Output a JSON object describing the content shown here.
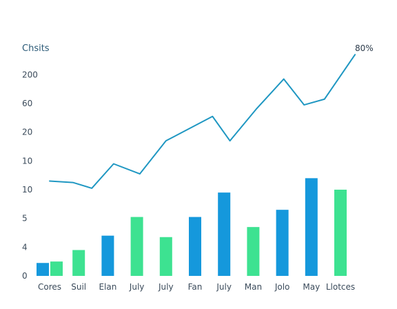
{
  "chart_data": {
    "type": "bar",
    "title": "Chsits",
    "annotation": "80%",
    "ytick_labels": [
      "0",
      "4",
      "5",
      "10",
      "10",
      "20",
      "60",
      "200"
    ],
    "categories": [
      "Cores",
      "Suil",
      "Elan",
      "July",
      "July",
      "Fan",
      "July",
      "Man",
      "Jolo",
      "May",
      "Llotces"
    ],
    "series": [
      {
        "type": "bar",
        "bars": [
          {
            "category": "Cores",
            "value": 0.45,
            "color": "#1598dc",
            "offset": -1
          },
          {
            "category": "Cores",
            "value": 0.5,
            "color": "#3de291",
            "offset": 1
          },
          {
            "category": "Suil",
            "value": 0.9,
            "color": "#3de291",
            "offset": 0
          },
          {
            "category": "Elan",
            "value": 1.4,
            "color": "#1598dc",
            "offset": 0
          },
          {
            "category": "July",
            "value": 2.05,
            "color": "#3de291",
            "offset": 0
          },
          {
            "category": "July",
            "value": 1.35,
            "color": "#3de291",
            "offset": 0
          },
          {
            "category": "Fan",
            "value": 2.05,
            "color": "#1598dc",
            "offset": 0
          },
          {
            "category": "July",
            "value": 2.9,
            "color": "#1598dc",
            "offset": 0
          },
          {
            "category": "Man",
            "value": 1.7,
            "color": "#3de291",
            "offset": 0
          },
          {
            "category": "Jolo",
            "value": 2.3,
            "color": "#1598dc",
            "offset": 0
          },
          {
            "category": "May",
            "value": 3.4,
            "color": "#1598dc",
            "offset": 0
          },
          {
            "category": "Llotces",
            "value": 3.0,
            "color": "#3de291",
            "offset": 0
          }
        ]
      },
      {
        "type": "line",
        "color": "#1f97c2",
        "points": [
          {
            "x": 0,
            "y": 3.3
          },
          {
            "x": 0.8,
            "y": 3.25
          },
          {
            "x": 1.45,
            "y": 3.05
          },
          {
            "x": 2.2,
            "y": 3.9
          },
          {
            "x": 3.1,
            "y": 3.55
          },
          {
            "x": 4,
            "y": 4.7
          },
          {
            "x": 5.6,
            "y": 5.55
          },
          {
            "x": 6.2,
            "y": 4.7
          },
          {
            "x": 7.1,
            "y": 5.8
          },
          {
            "x": 8.05,
            "y": 6.85
          },
          {
            "x": 8.75,
            "y": 5.95
          },
          {
            "x": 9.45,
            "y": 6.15
          },
          {
            "x": 10.5,
            "y": 7.7
          }
        ]
      }
    ],
    "ylim": [
      0,
      7.8
    ],
    "grid": false
  }
}
